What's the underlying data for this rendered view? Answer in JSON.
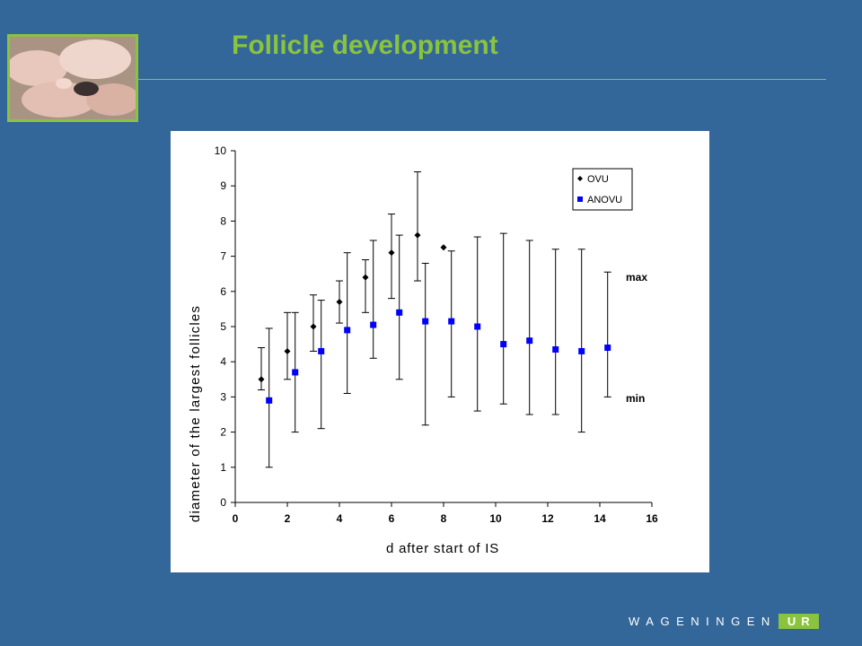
{
  "slide": {
    "title": "Follicle development",
    "logo_main": "WAGENINGEN",
    "logo_suffix": "UR"
  },
  "colors": {
    "background": "#336699",
    "accent": "#8ac33e",
    "ovu_marker": "#000000",
    "anovu_marker": "#0000ff"
  },
  "chart_data": {
    "type": "scatter",
    "xlabel": "d after start of IS",
    "ylabel": "diameter of the largest follicles",
    "xlim": [
      0,
      16
    ],
    "ylim": [
      0,
      10
    ],
    "xticks": [
      "0",
      "2",
      "4",
      "6",
      "8",
      "10",
      "12",
      "14",
      "16"
    ],
    "yticks": [
      "0",
      "1",
      "2",
      "3",
      "4",
      "5",
      "6",
      "7",
      "8",
      "9",
      "10"
    ],
    "grid": false,
    "legend_position": "top-right",
    "annotations": [
      "max",
      "min"
    ],
    "series": [
      {
        "name": "OVU",
        "marker": "diamond",
        "color": "#000000",
        "x": [
          1,
          2,
          3,
          4,
          5,
          6,
          7,
          8
        ],
        "y": [
          3.5,
          4.3,
          5.0,
          5.7,
          6.4,
          7.1,
          7.6,
          7.25
        ],
        "min": [
          3.2,
          3.5,
          4.3,
          5.1,
          5.4,
          5.8,
          6.3,
          null
        ],
        "max": [
          4.4,
          5.4,
          5.9,
          6.3,
          6.9,
          8.2,
          9.4,
          null
        ]
      },
      {
        "name": "ANOVU",
        "marker": "square",
        "color": "#0000ff",
        "x": [
          1.3,
          2.3,
          3.3,
          4.3,
          5.3,
          6.3,
          7.3,
          8.3,
          9.3,
          10.3,
          11.3,
          12.3,
          13.3,
          14.3
        ],
        "y": [
          2.9,
          3.7,
          4.3,
          4.9,
          5.05,
          5.4,
          5.15,
          5.15,
          5.0,
          4.5,
          4.6,
          4.35,
          4.3,
          4.4
        ],
        "min": [
          1.0,
          2.0,
          2.1,
          3.1,
          4.1,
          3.5,
          2.2,
          3.0,
          2.6,
          2.8,
          2.5,
          2.5,
          2.0,
          3.0
        ],
        "max": [
          4.95,
          5.4,
          5.75,
          7.1,
          7.45,
          7.6,
          6.8,
          7.15,
          7.55,
          7.65,
          7.45,
          7.2,
          7.2,
          6.55
        ]
      }
    ]
  }
}
